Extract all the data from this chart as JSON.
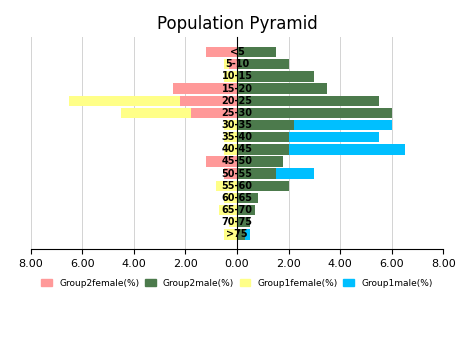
{
  "title": "Population Pyramid",
  "age_groups": [
    "<5",
    "5-10",
    "10-15",
    "15-20",
    "20-25",
    "25-30",
    "30-35",
    "35-40",
    "40-45",
    "45-50",
    "50-55",
    "55-60",
    "60-65",
    "65-70",
    "70-75",
    ">75"
  ],
  "group2_female": [
    1.2,
    0.3,
    0.0,
    2.5,
    2.2,
    1.8,
    0.0,
    0.0,
    0.0,
    1.2,
    0.5,
    0.0,
    0.0,
    0.0,
    0.0,
    0.0
  ],
  "group2_male": [
    1.5,
    2.0,
    3.0,
    3.5,
    5.5,
    6.0,
    2.2,
    2.0,
    2.0,
    1.8,
    1.5,
    2.0,
    0.8,
    0.7,
    0.5,
    0.3
  ],
  "group1_female": [
    0.0,
    0.5,
    0.5,
    2.0,
    6.5,
    4.5,
    0.5,
    0.5,
    0.5,
    0.5,
    0.5,
    0.8,
    0.5,
    0.7,
    0.3,
    0.5
  ],
  "group1_male": [
    0.8,
    1.0,
    1.5,
    2.0,
    1.5,
    0.5,
    6.0,
    5.5,
    6.5,
    0.5,
    3.0,
    0.5,
    0.8,
    0.5,
    0.5,
    0.5
  ],
  "colors": {
    "group2_female": "#FF9999",
    "group2_male": "#4C7A4C",
    "group1_female": "#FFFF88",
    "group1_male": "#00BFFF"
  },
  "xlim": [
    -8,
    8
  ],
  "xticks": [
    -8,
    -6,
    -4,
    -2,
    0,
    2,
    4,
    6,
    8
  ],
  "xticklabels": [
    "8.00",
    "6.00",
    "4.00",
    "2.00",
    "0.00",
    "2.00",
    "4.00",
    "6.00",
    "8.00"
  ],
  "legend_labels": [
    "Group2female(%)",
    "Group2male(%)",
    "Group1female(%)",
    "Group1male(%)"
  ]
}
